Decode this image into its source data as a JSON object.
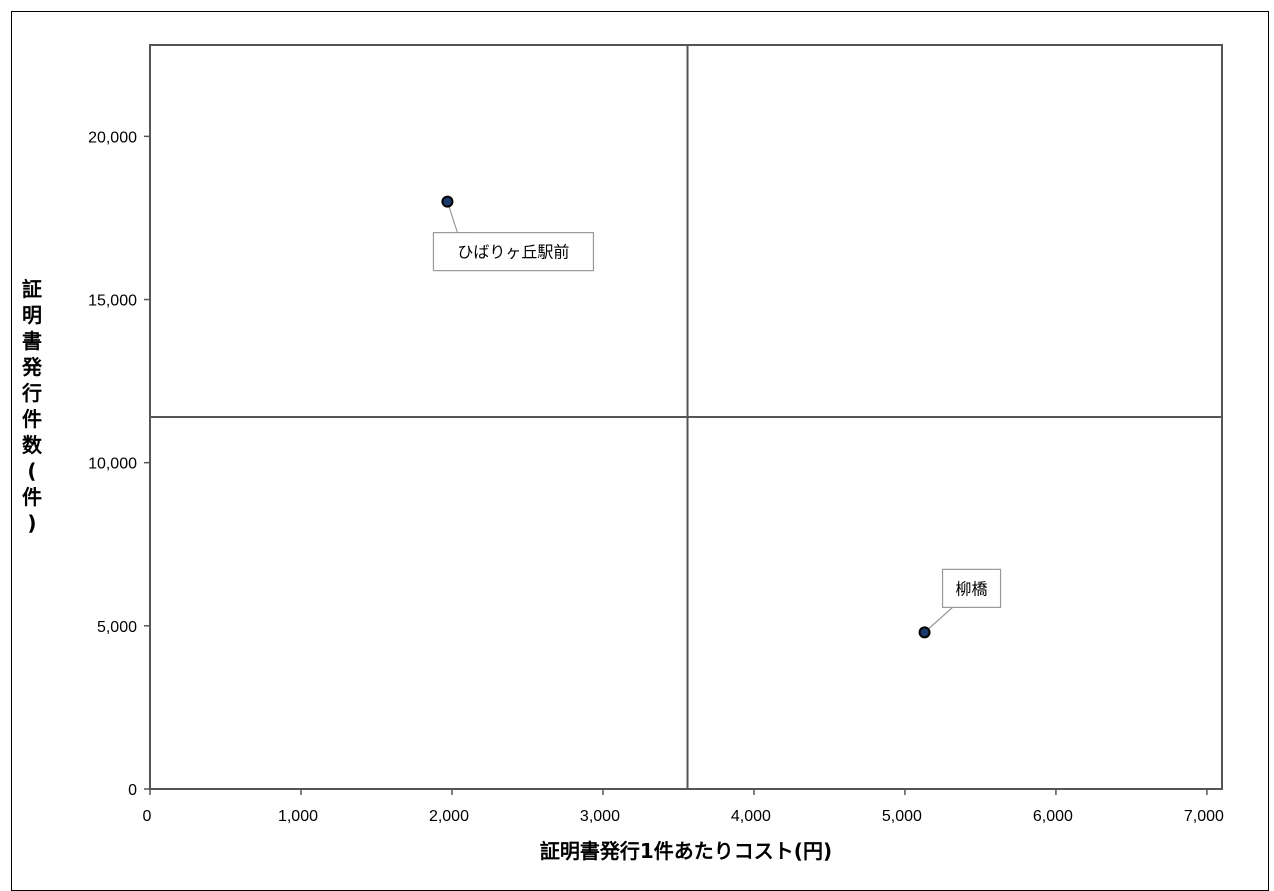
{
  "chart_data": {
    "type": "scatter",
    "title": "",
    "xlabel": "証明書発行1件あたりコスト(円)",
    "ylabel": "証明書発行件数(件)",
    "xlim": [
      0,
      7100
    ],
    "ylim": [
      0,
      22800
    ],
    "x_ticks": [
      0,
      1000,
      2000,
      3000,
      4000,
      5000,
      6000,
      7000
    ],
    "x_tick_labels": [
      "0",
      "1,000",
      "2,000",
      "3,000",
      "4,000",
      "5,000",
      "6,000",
      "7,000"
    ],
    "y_ticks": [
      0,
      5000,
      10000,
      15000,
      20000
    ],
    "y_tick_labels": [
      "0",
      "5,000",
      "10,000",
      "15,000",
      "20,000"
    ],
    "quadrant_divider_x": 3560,
    "quadrant_divider_y": 11400,
    "grid": false,
    "legend": "none",
    "points": [
      {
        "label": "ひばりヶ丘駅前",
        "x": 1970,
        "y": 18000
      },
      {
        "label": "柳橋",
        "x": 5130,
        "y": 4800
      }
    ],
    "colors": {
      "marker_fill": "#1a3a6b",
      "marker_edge": "#000000",
      "divider": "#555555",
      "axis": "#555555",
      "callout_border": "#999999"
    }
  }
}
